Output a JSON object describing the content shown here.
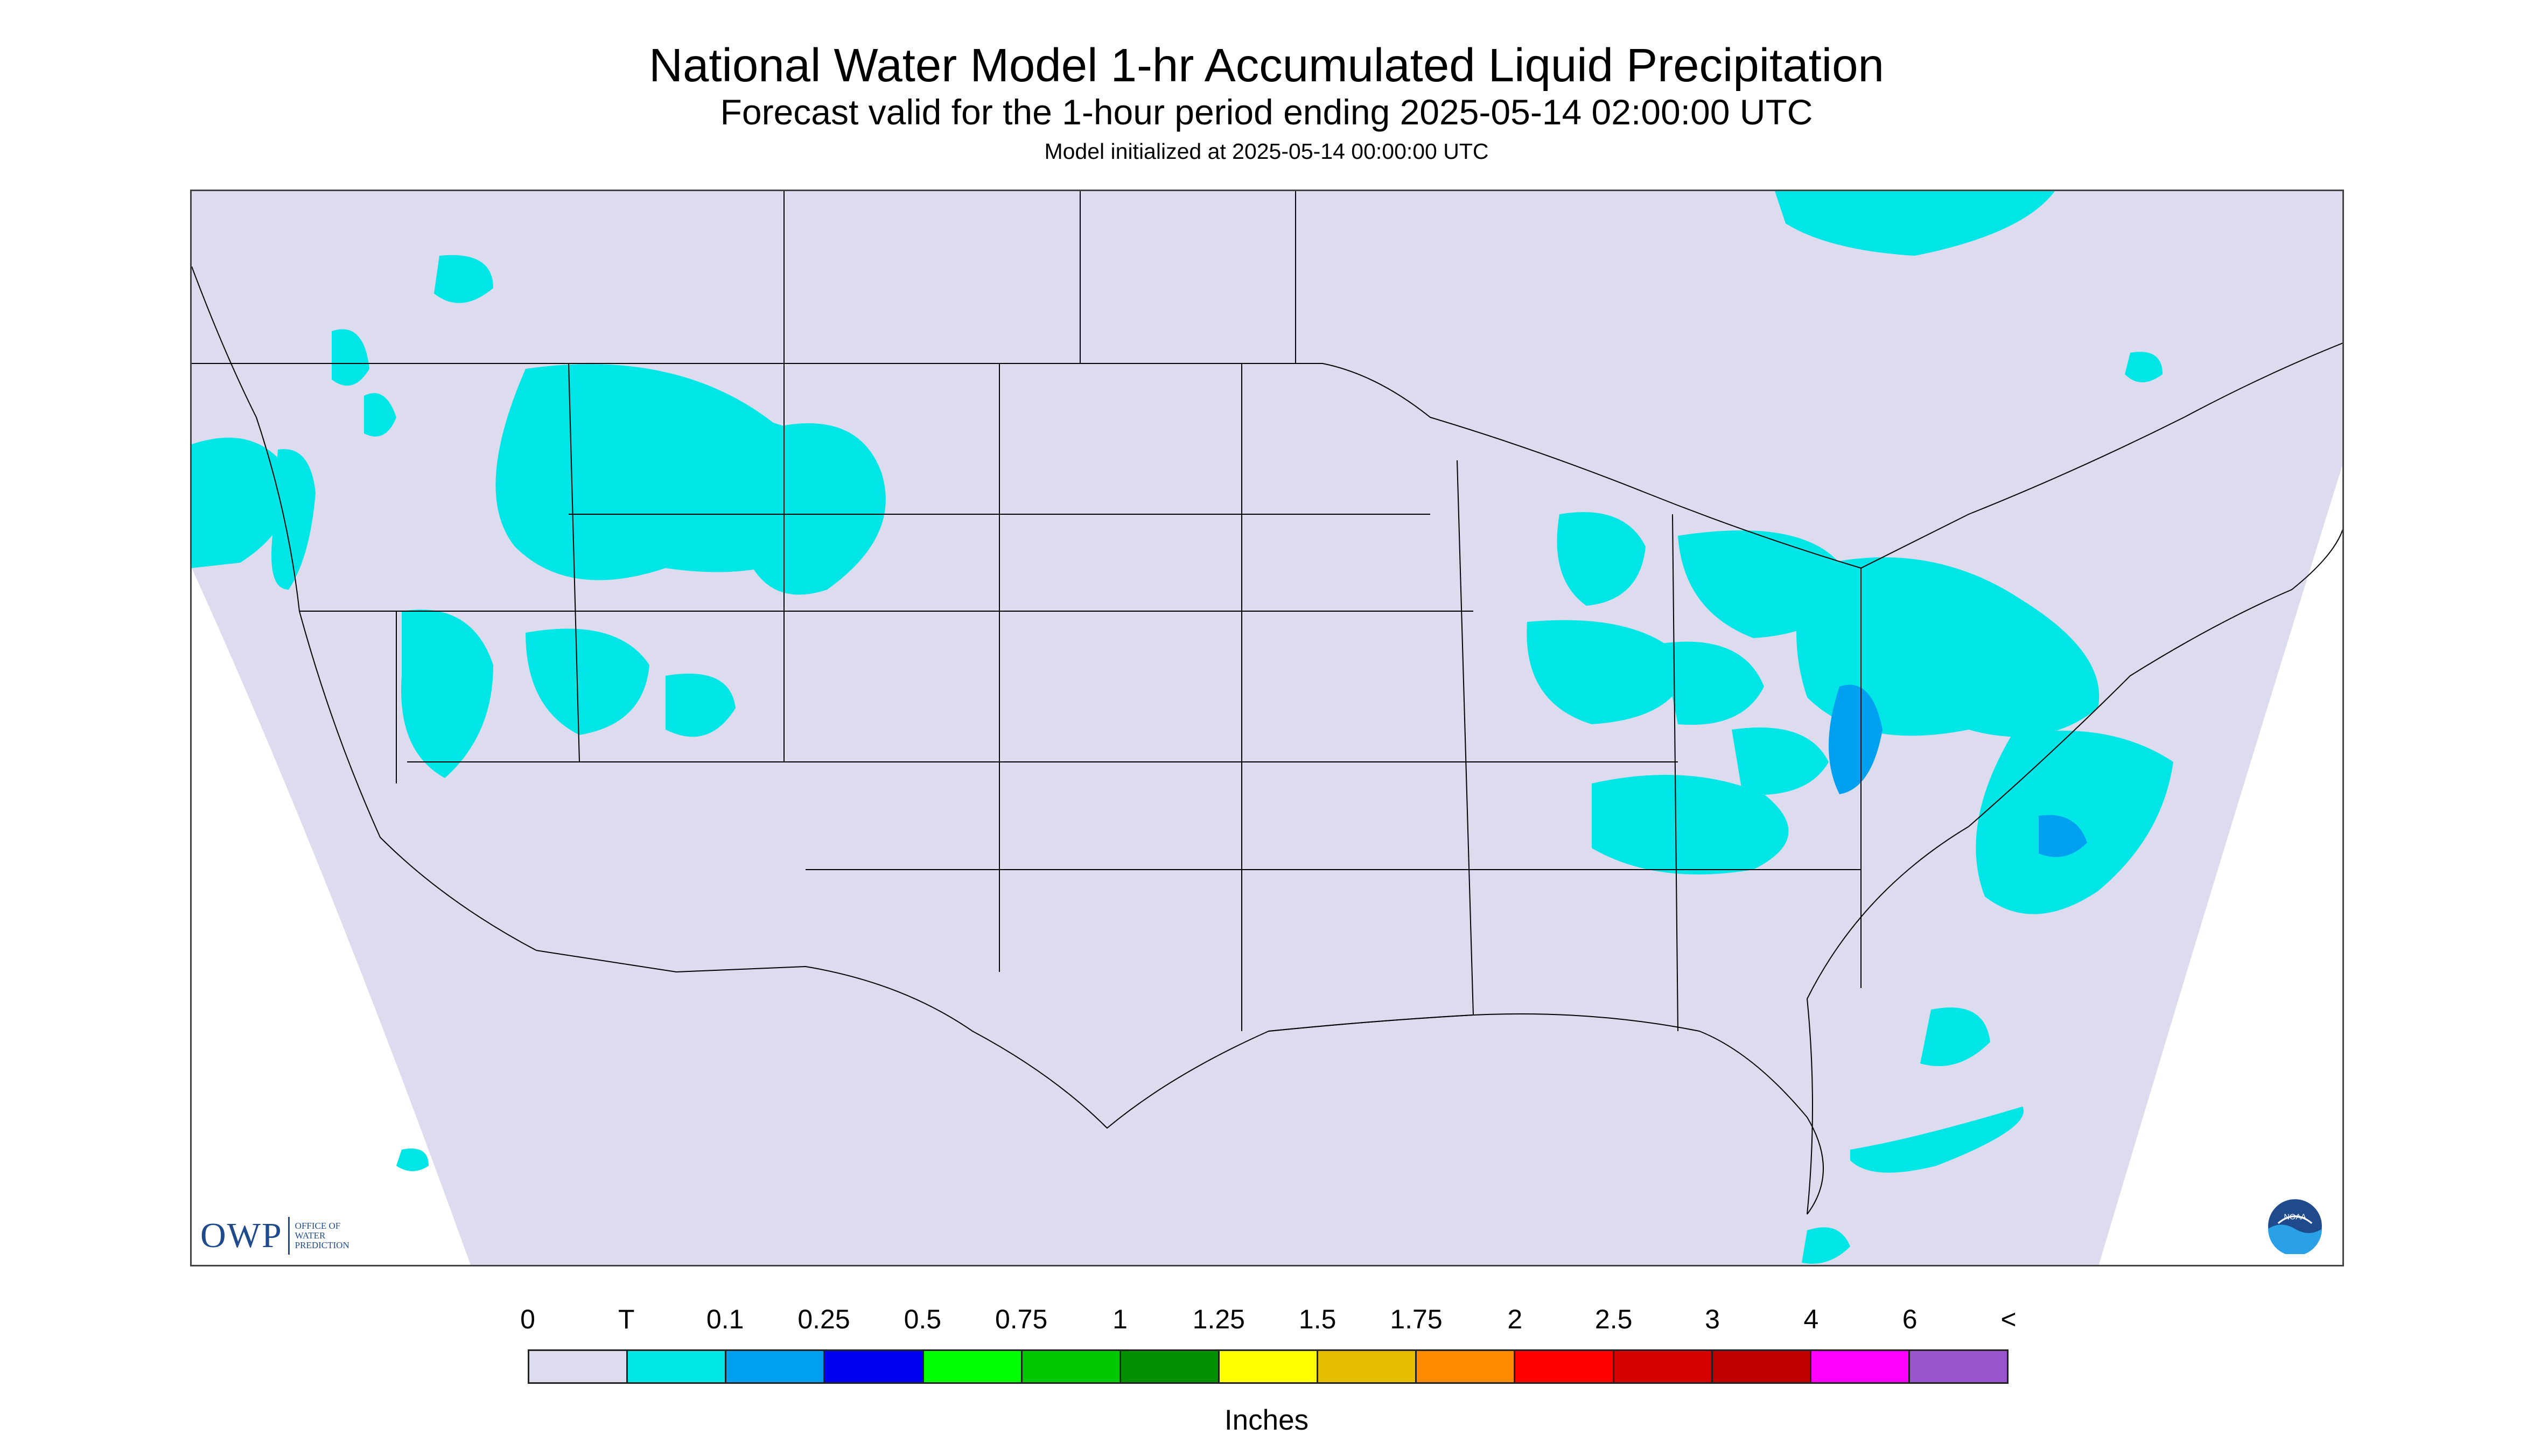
{
  "header": {
    "title": "National Water Model 1-hr Accumulated Liquid Precipitation",
    "subtitle": "Forecast valid for the 1-hour period ending 2025-05-14 02:00:00 UTC",
    "init_line": "Model initialized at 2025-05-14 00:00:00 UTC"
  },
  "map": {
    "region": "Continental United States",
    "background_color": "#dcdcee",
    "boundary_color": "#000000",
    "precip_areas": [
      {
        "region": "Pacific Northwest coast",
        "category": "T"
      },
      {
        "region": "Idaho / Montana / Wyoming",
        "category": "T"
      },
      {
        "region": "Nevada / Utah",
        "category": "T"
      },
      {
        "region": "Great Lakes / Michigan",
        "category": "T"
      },
      {
        "region": "Ohio Valley / Appalachians",
        "category": "0.1"
      },
      {
        "region": "Mid-Atlantic / Chesapeake",
        "category": "0.25"
      },
      {
        "region": "Carolinas / Georgia",
        "category": "0.1"
      },
      {
        "region": "Atlantic offshore",
        "category": "0.1"
      },
      {
        "region": "Quebec / Maine",
        "category": "T"
      },
      {
        "region": "Gulf / Florida offshore",
        "category": "T"
      }
    ]
  },
  "logos": {
    "owp_text": "OWP",
    "owp_subtext": "OFFICE OF WATER PREDICTION",
    "noaa_text": "NOAA"
  },
  "legend": {
    "labels": [
      "0",
      "T",
      "0.1",
      "0.25",
      "0.5",
      "0.75",
      "1",
      "1.25",
      "1.5",
      "1.75",
      "2",
      "2.5",
      "3",
      "4",
      "6",
      "<"
    ],
    "colors": [
      "#dcdcee",
      "#00e6e6",
      "#00a0f0",
      "#0000f0",
      "#00ff00",
      "#00c800",
      "#009000",
      "#ffff00",
      "#e6be00",
      "#ff8c00",
      "#ff0000",
      "#d70000",
      "#c00000",
      "#ff00ff",
      "#9955cc"
    ],
    "units": "Inches"
  }
}
